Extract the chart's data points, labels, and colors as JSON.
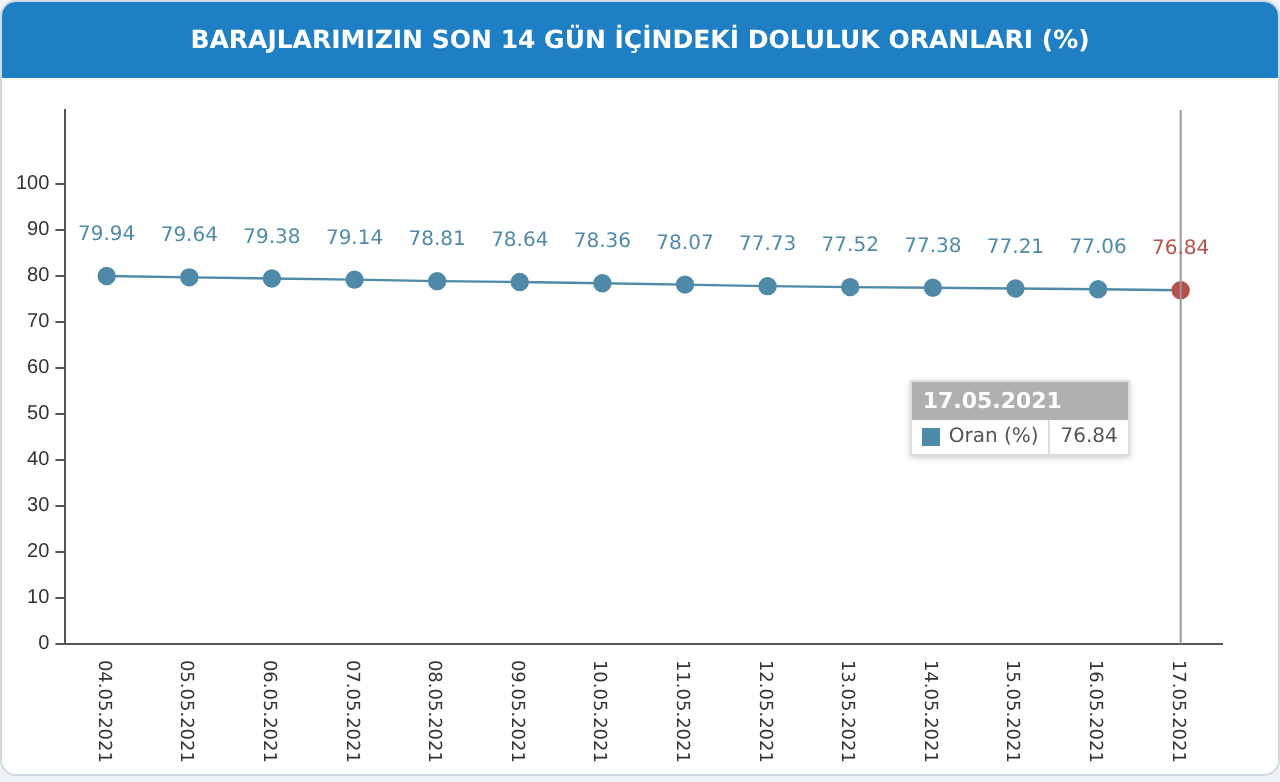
{
  "chart_data": {
    "type": "line",
    "title": "BARAJLARIMIZIN SON 14 GÜN İÇİNDEKİ DOLULUK ORANLARI (%)",
    "categories": [
      "04.05.2021",
      "05.05.2021",
      "06.05.2021",
      "07.05.2021",
      "08.05.2021",
      "09.05.2021",
      "10.05.2021",
      "11.05.2021",
      "12.05.2021",
      "13.05.2021",
      "14.05.2021",
      "15.05.2021",
      "16.05.2021",
      "17.05.2021"
    ],
    "series": [
      {
        "name": "Oran (%)",
        "color": "#4f8aa8",
        "colors": [
          "#4f8aa8",
          "#4f8aa8",
          "#4f8aa8",
          "#4f8aa8",
          "#4f8aa8",
          "#4f8aa8",
          "#4f8aa8",
          "#4f8aa8",
          "#4f8aa8",
          "#4f8aa8",
          "#4f8aa8",
          "#4f8aa8",
          "#4f8aa8",
          "#b5524a"
        ],
        "values": [
          79.94,
          79.64,
          79.38,
          79.14,
          78.81,
          78.64,
          78.36,
          78.07,
          77.73,
          77.52,
          77.38,
          77.21,
          77.06,
          76.84
        ]
      }
    ],
    "ylim": [
      0,
      116
    ],
    "yticks": [
      0,
      10,
      20,
      30,
      40,
      50,
      60,
      70,
      80,
      90,
      100
    ],
    "ref_lines": [
      {
        "axis": "x",
        "value": "17.05.2021",
        "color": "#999999"
      }
    ],
    "annotations": [
      "76.84"
    ],
    "data_labels": true,
    "marker": "circle",
    "line_style": "solid",
    "grid": false,
    "legend": "right"
  }
}
